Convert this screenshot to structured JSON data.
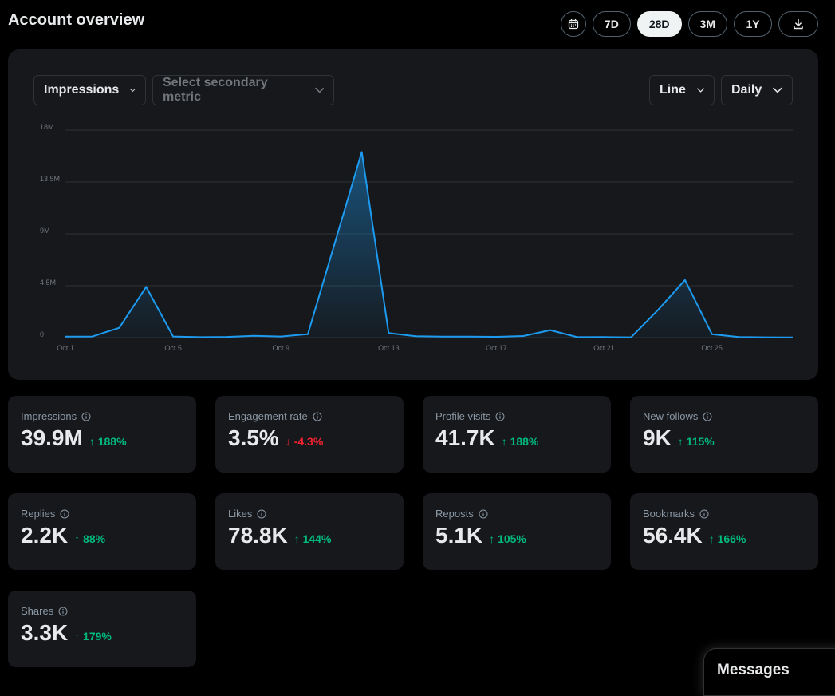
{
  "header": {
    "title": "Account overview"
  },
  "range_buttons": [
    "7D",
    "28D",
    "3M",
    "1Y"
  ],
  "active_range": "28D",
  "icons": {
    "calendar": "calendar-icon",
    "download": "download-icon",
    "info": "info-icon",
    "chevron": "chevron-down-icon"
  },
  "controls": {
    "primary_metric": "Impressions",
    "secondary_placeholder": "Select secondary metric",
    "chart_type": "Line",
    "interval": "Daily"
  },
  "chart_data": {
    "type": "area",
    "ylim": [
      0,
      18000000
    ],
    "y_ticks": [
      {
        "value": 0,
        "label": "0"
      },
      {
        "value": 4500000,
        "label": "4.5M"
      },
      {
        "value": 9000000,
        "label": "9M"
      },
      {
        "value": 13500000,
        "label": "13.5M"
      },
      {
        "value": 18000000,
        "label": "18M"
      }
    ],
    "x_tick_labels": [
      {
        "index": 0,
        "label": "Oct 1"
      },
      {
        "index": 4,
        "label": "Oct 5"
      },
      {
        "index": 8,
        "label": "Oct 9"
      },
      {
        "index": 12,
        "label": "Oct 13"
      },
      {
        "index": 16,
        "label": "Oct 17"
      },
      {
        "index": 20,
        "label": "Oct 21"
      },
      {
        "index": 24,
        "label": "Oct 25"
      }
    ],
    "values": [
      80000,
      100000,
      850000,
      4400000,
      100000,
      40000,
      60000,
      150000,
      100000,
      300000,
      8200000,
      16100000,
      400000,
      120000,
      90000,
      80000,
      70000,
      140000,
      650000,
      40000,
      50000,
      30000,
      2400000,
      5000000,
      300000,
      50000,
      30000,
      20000
    ],
    "colors": {
      "line": "#1d9bf0",
      "grid": "#2f3336",
      "tick": "#71767b"
    }
  },
  "stats": [
    {
      "label": "Impressions",
      "value": "39.9M",
      "change": "↑ 188%",
      "direction": "up"
    },
    {
      "label": "Engagement rate",
      "value": "3.5%",
      "change": "↓ -4.3%",
      "direction": "down"
    },
    {
      "label": "Profile visits",
      "value": "41.7K",
      "change": "↑ 188%",
      "direction": "up"
    },
    {
      "label": "New follows",
      "value": "9K",
      "change": "↑ 115%",
      "direction": "up"
    },
    {
      "label": "Replies",
      "value": "2.2K",
      "change": "↑ 88%",
      "direction": "up"
    },
    {
      "label": "Likes",
      "value": "78.8K",
      "change": "↑ 144%",
      "direction": "up"
    },
    {
      "label": "Reposts",
      "value": "5.1K",
      "change": "↑ 105%",
      "direction": "up"
    },
    {
      "label": "Bookmarks",
      "value": "56.4K",
      "change": "↑ 166%",
      "direction": "up"
    },
    {
      "label": "Shares",
      "value": "3.3K",
      "change": "↑ 179%",
      "direction": "up"
    }
  ],
  "messages": {
    "label": "Messages"
  }
}
